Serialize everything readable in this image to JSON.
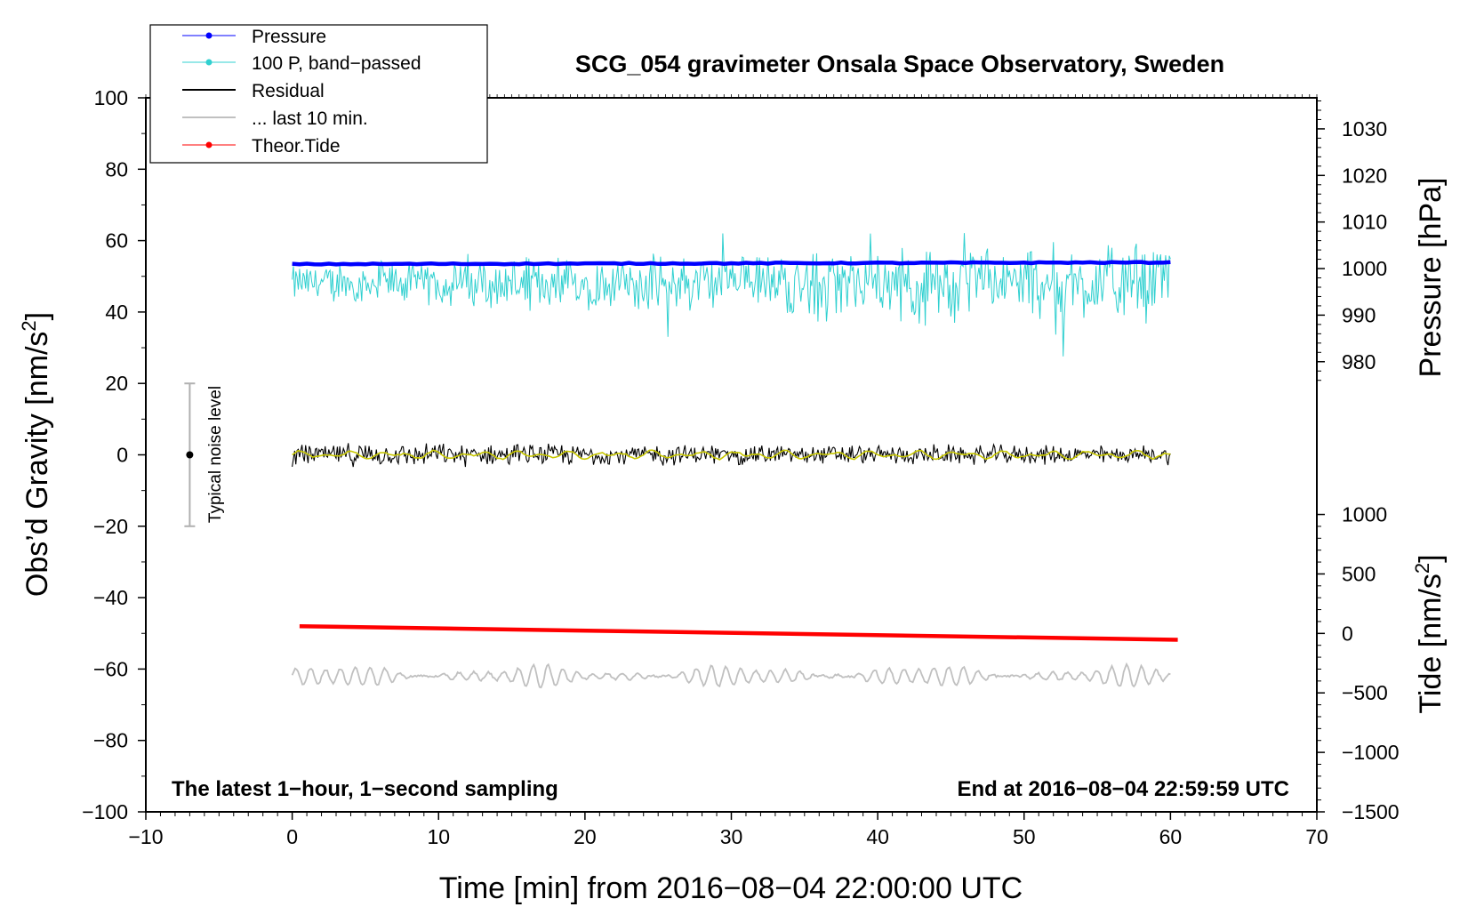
{
  "chart_data": {
    "type": "line",
    "title": "SCG_054 gravimeter Onsala Space Observatory, Sweden",
    "xlabel": "Time [min] from 2016−08−04 22:00:00 UTC",
    "ylabel_main": "Obs’d Gravity [nm/s",
    "ylabel_main_sup": "2",
    "ylabel_main_close": "]",
    "ylabel_pressure": "Pressure [hPa]",
    "ylabel_tide": "Tide [nm/s",
    "ylabel_tide_sup": "2",
    "ylabel_tide_close": "]",
    "xlim": [
      -10,
      70
    ],
    "ylim": [
      -100,
      100
    ],
    "x_ticks": [
      -10,
      0,
      10,
      20,
      30,
      40,
      50,
      60,
      70
    ],
    "x_tick_labels": [
      "−10",
      "0",
      "10",
      "20",
      "30",
      "40",
      "50",
      "60",
      "70"
    ],
    "y_ticks": [
      -100,
      -80,
      -60,
      -40,
      -20,
      0,
      20,
      40,
      60,
      80,
      100
    ],
    "y_tick_labels": [
      "−100",
      "−80",
      "−60",
      "−40",
      "−20",
      "0",
      "20",
      "40",
      "60",
      "80",
      "100"
    ],
    "pressure_axis": {
      "ticks": [
        980,
        990,
        1000,
        1010,
        1020,
        1030
      ],
      "tick_labels": [
        "980",
        "990",
        "1000",
        "1010",
        "1020",
        "1030"
      ],
      "value_at_gravity_zero": 960,
      "hpa_per_gravity_unit": 0.7667
    },
    "tide_axis": {
      "ticks": [
        -1500,
        -1000,
        -500,
        0,
        500,
        1000
      ],
      "tick_labels": [
        "−1500",
        "−1000",
        "−500",
        "0",
        "500",
        "1000"
      ],
      "value_at_gravity_min": -1500,
      "value_at_gravity_ref": 1000,
      "gravity_ref": -16.7
    },
    "annotations": {
      "bottom_left": "The latest 1−hour, 1−second sampling",
      "bottom_right": "End at 2016−08−04 22:59:59 UTC",
      "noise_label": "Typical noise level"
    },
    "noise_bar": {
      "x": -7,
      "center": 0,
      "low": -20,
      "high": 20
    },
    "series": [
      {
        "name": "Pressure",
        "color": "#0000ff",
        "style": "line-dots",
        "x_range": [
          0,
          60
        ],
        "y_start": 53.4,
        "y_end": 53.9,
        "display_offset": 0
      },
      {
        "name": "100 P, band−passed",
        "color": "#30d0d0",
        "style": "noisy",
        "x_range": [
          0,
          60
        ],
        "center": 48,
        "amplitude_start": 4,
        "amplitude_end": 9,
        "min": 26,
        "max": 68
      },
      {
        "name": "Residual",
        "color": "#000000",
        "style": "noisy",
        "x_range": [
          0,
          60
        ],
        "center": 0,
        "amplitude_start": 2.5,
        "amplitude_end": 2.0,
        "min": -6,
        "max": 6
      },
      {
        "name": "... last 10 min.",
        "color": "#c0c0c0",
        "style": "oscillation",
        "x_range": [
          0,
          60
        ],
        "center": -62,
        "amplitude": 2.5
      },
      {
        "name": "Theor.Tide",
        "color": "#ff0000",
        "style": "line-dots",
        "x_range": [
          0.5,
          60.5
        ],
        "y_start": -48,
        "y_end": -51.8
      }
    ],
    "smoothed_residual": {
      "color": "#c8c800",
      "center": 0,
      "amplitude": 1.2
    }
  }
}
